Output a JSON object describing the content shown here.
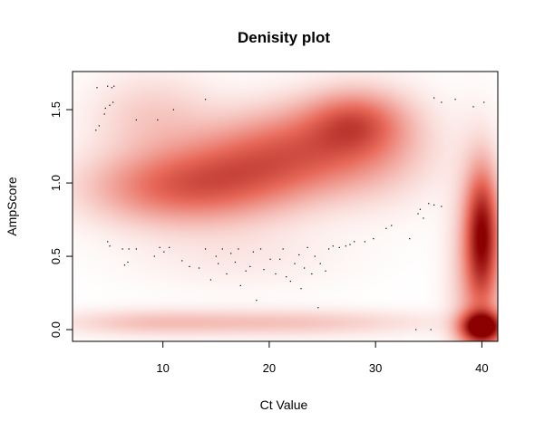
{
  "chart_data": {
    "type": "heatmap",
    "title": "Denisity plot",
    "xlabel": "Ct Value",
    "ylabel": "AmpScore",
    "xlim": [
      1.5,
      41.5
    ],
    "ylim": [
      -0.08,
      1.76
    ],
    "x_ticks": [
      10,
      20,
      30,
      40
    ],
    "y_ticks": [
      0.0,
      0.5,
      1.0,
      1.5
    ],
    "x_tick_labels": [
      "10",
      "20",
      "30",
      "40"
    ],
    "y_tick_labels": [
      "0.0",
      "0.5",
      "1.0",
      "1.5"
    ],
    "grid": false,
    "legend": "none",
    "colors": {
      "low": "#ffffff",
      "mid": "#e8695a",
      "high": "#8b0000"
    },
    "density_blobs": [
      {
        "cx": 11,
        "cy": 0.97,
        "sx": 5.5,
        "sy": 0.17,
        "w": 0.55
      },
      {
        "cx": 18,
        "cy": 1.1,
        "sx": 5,
        "sy": 0.2,
        "w": 0.45
      },
      {
        "cx": 24,
        "cy": 1.25,
        "sx": 5,
        "sy": 0.2,
        "w": 0.45
      },
      {
        "cx": 28,
        "cy": 1.42,
        "sx": 3,
        "sy": 0.14,
        "w": 0.45
      },
      {
        "cx": 30,
        "cy": 1.25,
        "sx": 4,
        "sy": 0.25,
        "w": 0.2
      },
      {
        "cx": 9,
        "cy": 1.45,
        "sx": 4,
        "sy": 0.2,
        "w": 0.18
      },
      {
        "cx": 20,
        "cy": 0.05,
        "sx": 10,
        "sy": 0.06,
        "w": 0.22
      },
      {
        "cx": 8,
        "cy": 0.05,
        "sx": 5,
        "sy": 0.06,
        "w": 0.12
      },
      {
        "cx": 40,
        "cy": 0.65,
        "sx": 1.0,
        "sy": 0.28,
        "w": 0.95
      },
      {
        "cx": 40,
        "cy": 0.02,
        "sx": 1.3,
        "sy": 0.07,
        "w": 1.4
      },
      {
        "cx": 39.5,
        "cy": 0.4,
        "sx": 1.6,
        "sy": 0.5,
        "w": 0.35
      },
      {
        "cx": 17,
        "cy": 0.5,
        "sx": 7,
        "sy": 0.15,
        "w": 0.07
      }
    ],
    "points": [
      [
        3.8,
        1.65
      ],
      [
        3.7,
        1.36
      ],
      [
        4.0,
        1.39
      ],
      [
        4.5,
        1.47
      ],
      [
        4.6,
        1.51
      ],
      [
        4.8,
        1.66
      ],
      [
        5.2,
        1.65
      ],
      [
        5.4,
        1.66
      ],
      [
        5.3,
        1.55
      ],
      [
        5.0,
        1.53
      ],
      [
        7.5,
        1.43
      ],
      [
        9.5,
        1.43
      ],
      [
        11.0,
        1.5
      ],
      [
        14.0,
        1.57
      ],
      [
        35.5,
        1.58
      ],
      [
        36.2,
        1.55
      ],
      [
        37.5,
        1.57
      ],
      [
        39.2,
        1.52
      ],
      [
        40.2,
        1.55
      ],
      [
        34.2,
        0.82
      ],
      [
        35.0,
        0.86
      ],
      [
        36.2,
        0.84
      ],
      [
        4.8,
        0.6
      ],
      [
        5.0,
        0.57
      ],
      [
        6.2,
        0.55
      ],
      [
        6.8,
        0.55
      ],
      [
        7.5,
        0.55
      ],
      [
        6.4,
        0.44
      ],
      [
        6.7,
        0.46
      ],
      [
        9.2,
        0.5
      ],
      [
        9.7,
        0.56
      ],
      [
        10.1,
        0.53
      ],
      [
        10.6,
        0.56
      ],
      [
        11.8,
        0.47
      ],
      [
        12.5,
        0.43
      ],
      [
        13.4,
        0.42
      ],
      [
        14.0,
        0.55
      ],
      [
        14.5,
        0.34
      ],
      [
        15.0,
        0.5
      ],
      [
        15.2,
        0.45
      ],
      [
        15.6,
        0.55
      ],
      [
        16.0,
        0.38
      ],
      [
        16.4,
        0.52
      ],
      [
        16.8,
        0.46
      ],
      [
        17.1,
        0.55
      ],
      [
        17.3,
        0.3
      ],
      [
        17.8,
        0.4
      ],
      [
        18.2,
        0.43
      ],
      [
        18.5,
        0.53
      ],
      [
        18.8,
        0.2
      ],
      [
        19.2,
        0.55
      ],
      [
        19.5,
        0.41
      ],
      [
        20.1,
        0.48
      ],
      [
        20.6,
        0.38
      ],
      [
        21.0,
        0.48
      ],
      [
        21.3,
        0.55
      ],
      [
        21.6,
        0.36
      ],
      [
        22.0,
        0.33
      ],
      [
        22.4,
        0.45
      ],
      [
        22.8,
        0.51
      ],
      [
        23.0,
        0.28
      ],
      [
        23.3,
        0.42
      ],
      [
        23.6,
        0.56
      ],
      [
        24.0,
        0.38
      ],
      [
        24.3,
        0.5
      ],
      [
        24.6,
        0.15
      ],
      [
        24.8,
        0.45
      ],
      [
        25.3,
        0.4
      ],
      [
        25.6,
        0.55
      ],
      [
        26.0,
        0.57
      ],
      [
        26.6,
        0.56
      ],
      [
        27.2,
        0.57
      ],
      [
        27.6,
        0.58
      ],
      [
        28.0,
        0.6
      ],
      [
        29.0,
        0.6
      ],
      [
        29.8,
        0.62
      ],
      [
        31.0,
        0.69
      ],
      [
        31.5,
        0.71
      ],
      [
        33.2,
        0.62
      ],
      [
        34.0,
        0.79
      ],
      [
        34.5,
        0.76
      ],
      [
        35.5,
        0.85
      ],
      [
        33.8,
        0.0
      ],
      [
        35.2,
        0.0
      ]
    ]
  }
}
